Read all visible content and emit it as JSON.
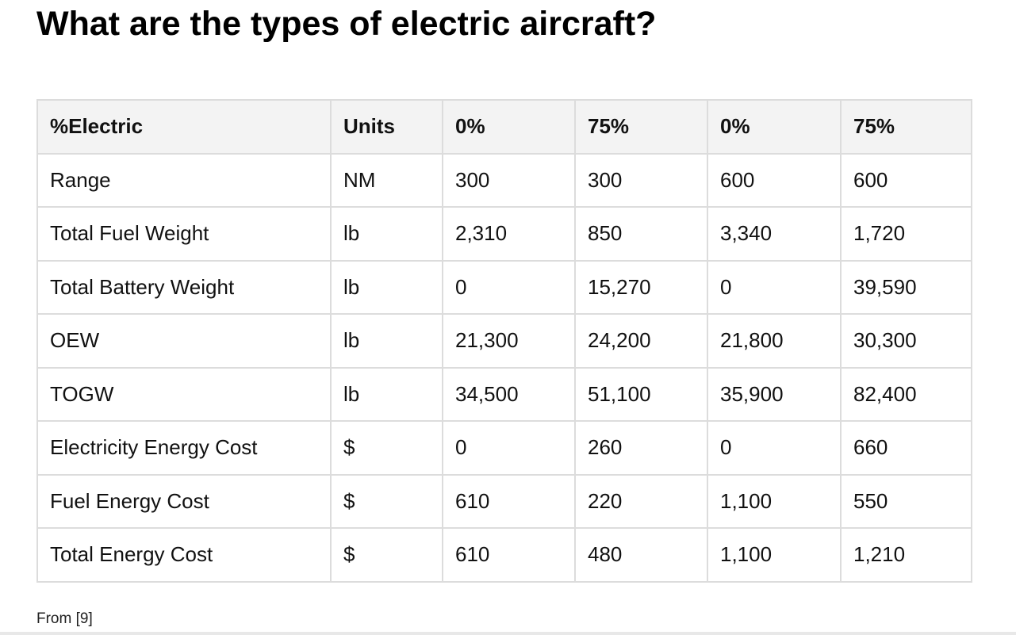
{
  "header": {
    "title": "What are the types of electric aircraft?"
  },
  "table": {
    "columns": [
      "%Electric",
      "Units",
      "0%",
      "75%",
      "0%",
      "75%"
    ],
    "rows": [
      [
        "Range",
        "NM",
        "300",
        "300",
        "600",
        "600"
      ],
      [
        "Total Fuel Weight",
        "lb",
        "2,310",
        "850",
        "3,340",
        "1,720"
      ],
      [
        "Total Battery Weight",
        "lb",
        "0",
        "15,270",
        "0",
        "39,590"
      ],
      [
        "OEW",
        "lb",
        "21,300",
        "24,200",
        "21,800",
        "30,300"
      ],
      [
        "TOGW",
        "lb",
        "34,500",
        "51,100",
        "35,900",
        "82,400"
      ],
      [
        "Electricity Energy Cost",
        "$",
        "0",
        "260",
        "0",
        "660"
      ],
      [
        "Fuel Energy Cost",
        "$",
        "610",
        "220",
        "1,100",
        "550"
      ],
      [
        "Total Energy Cost",
        "$",
        "610",
        "480",
        "1,100",
        "1,210"
      ]
    ]
  },
  "footnote": "From [9]"
}
